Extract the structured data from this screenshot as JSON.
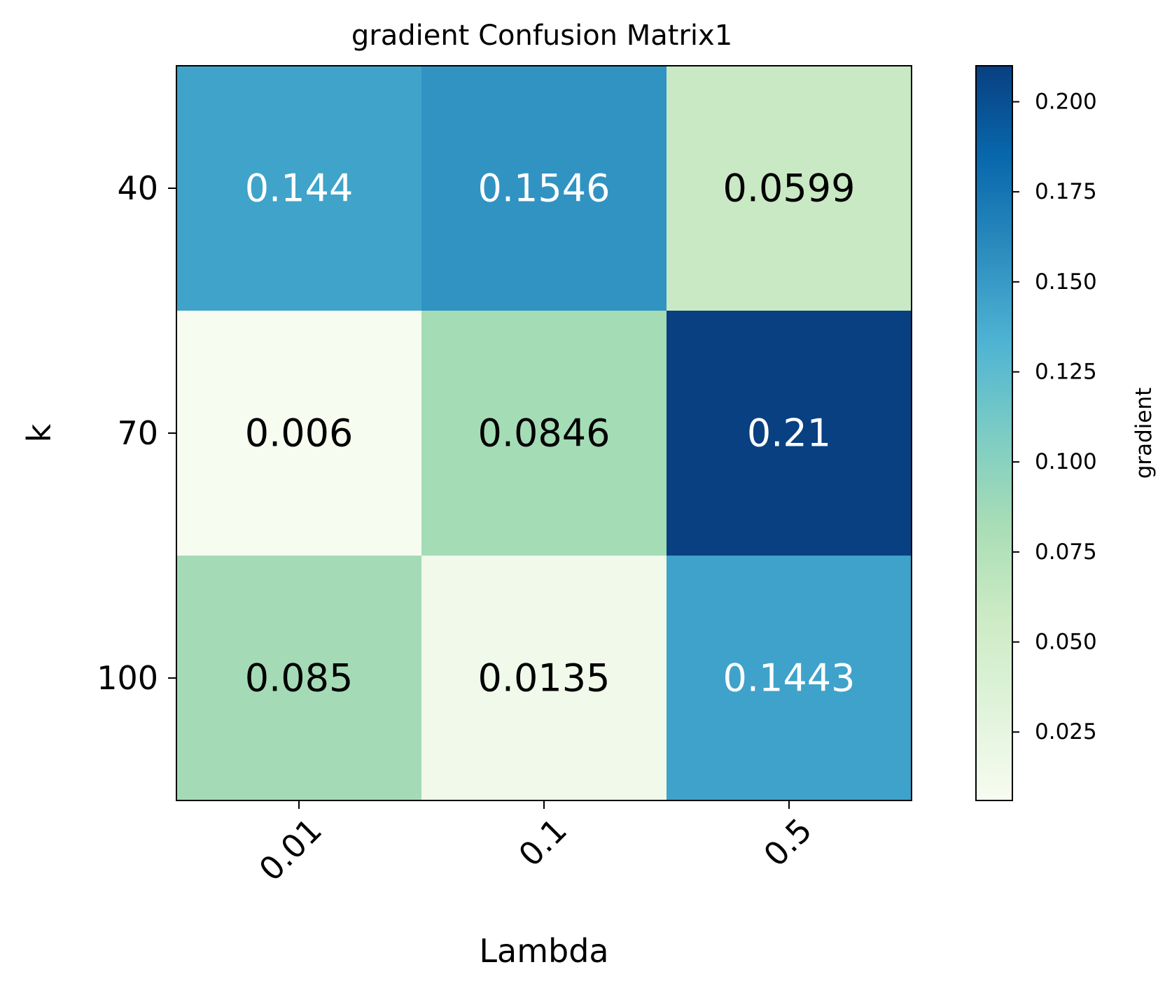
{
  "chart_data": {
    "type": "heatmap",
    "title": "gradient Confusion Matrix1",
    "xlabel": "Lambda",
    "ylabel": "k",
    "x_categories": [
      "0.01",
      "0.1",
      "0.5"
    ],
    "y_categories": [
      "40",
      "70",
      "100"
    ],
    "values": [
      [
        0.144,
        0.1546,
        0.0599
      ],
      [
        0.006,
        0.0846,
        0.21
      ],
      [
        0.085,
        0.0135,
        0.1443
      ]
    ],
    "cell_labels": [
      [
        "0.144",
        "0.1546",
        "0.0599"
      ],
      [
        "0.006",
        "0.0846",
        "0.21"
      ],
      [
        "0.085",
        "0.0135",
        "0.1443"
      ]
    ],
    "colorbar": {
      "label": "gradient",
      "range": [
        0.006,
        0.21
      ],
      "ticks": [
        0.025,
        0.05,
        0.075,
        0.1,
        0.125,
        0.15,
        0.175,
        0.2
      ],
      "tick_labels": [
        "0.025",
        "0.050",
        "0.075",
        "0.100",
        "0.125",
        "0.150",
        "0.175",
        "0.200"
      ],
      "colormap": "GnBu",
      "colormap_stops": [
        "#f7fcf0",
        "#e0f3db",
        "#ccebc5",
        "#a8ddb5",
        "#7bccc4",
        "#4eb3d3",
        "#2b8cbe",
        "#0868ac",
        "#084081"
      ]
    },
    "text_color_dark": "#000000",
    "text_color_light": "#ffffff"
  }
}
